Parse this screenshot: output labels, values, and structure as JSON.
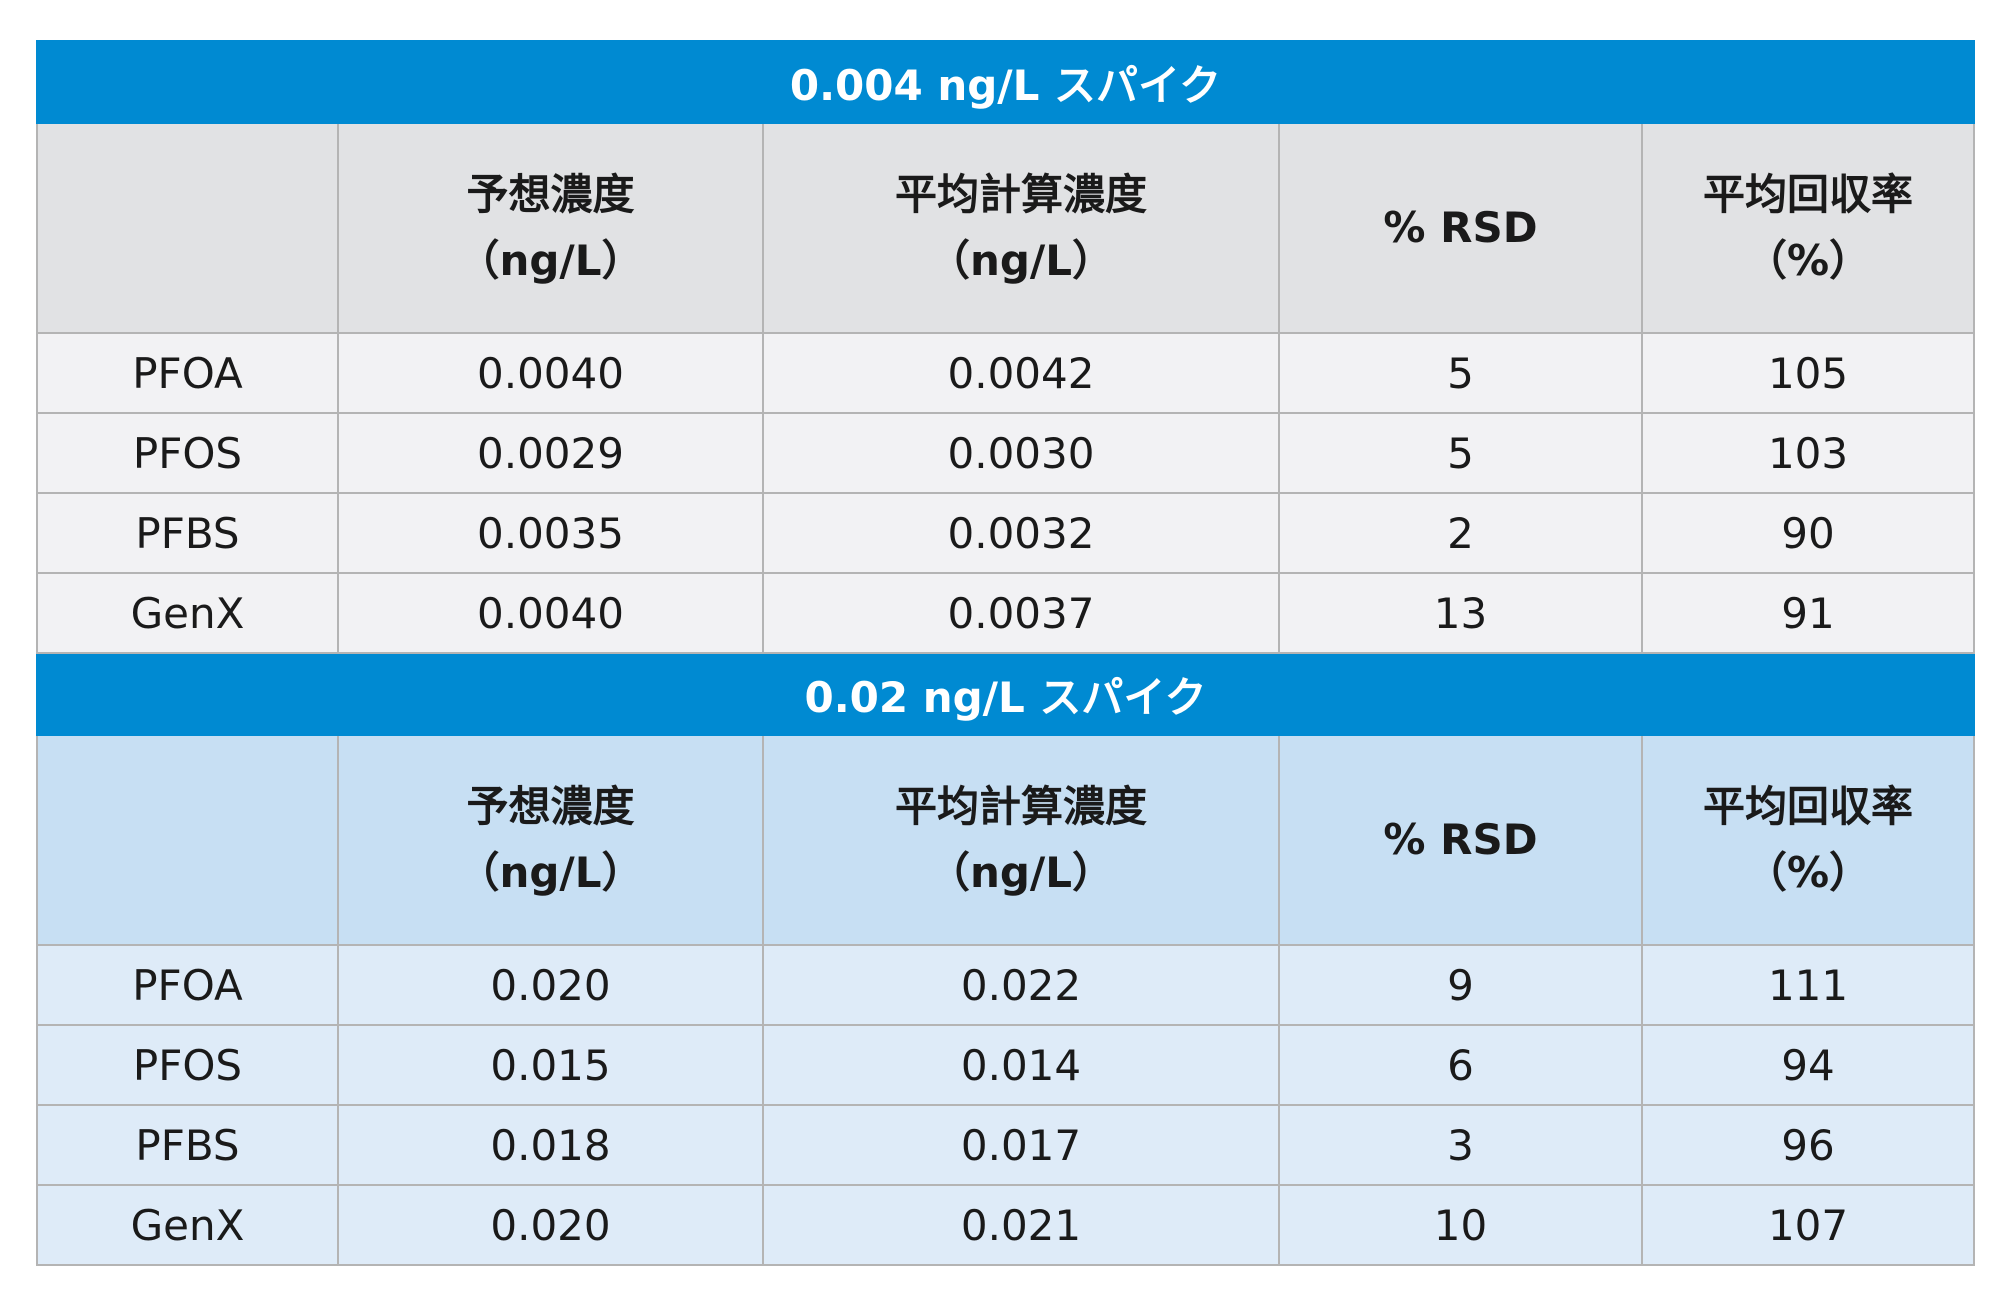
{
  "colors": {
    "section_bg": "#008ad2",
    "section_text": "#ffffff",
    "border": "#b4b4b4",
    "text": "#1a1a1a"
  },
  "columns": [
    {
      "line1": "",
      "line2": ""
    },
    {
      "line1": "予想濃度",
      "line2": "（ng/L）"
    },
    {
      "line1": "平均計算濃度",
      "line2": "（ng/L）"
    },
    {
      "line1": "% RSD",
      "line2": ""
    },
    {
      "line1": "平均回収率",
      "line2": "（%）"
    }
  ],
  "sections": [
    {
      "title": "0.004 ng/L スパイク",
      "header_bg": "#e1e2e4",
      "row_bg": "#f2f2f4",
      "rows": [
        {
          "analyte": "PFOA",
          "expected": "0.0040",
          "mean_calc": "0.0042",
          "rsd": "5",
          "recovery": "105"
        },
        {
          "analyte": "PFOS",
          "expected": "0.0029",
          "mean_calc": "0.0030",
          "rsd": "5",
          "recovery": "103"
        },
        {
          "analyte": "PFBS",
          "expected": "0.0035",
          "mean_calc": "0.0032",
          "rsd": "2",
          "recovery": "90"
        },
        {
          "analyte": "GenX",
          "expected": "0.0040",
          "mean_calc": "0.0037",
          "rsd": "13",
          "recovery": "91"
        }
      ]
    },
    {
      "title": "0.02 ng/L スパイク",
      "header_bg": "#c7dff3",
      "row_bg": "#deebf8",
      "rows": [
        {
          "analyte": "PFOA",
          "expected": "0.020",
          "mean_calc": "0.022",
          "rsd": "9",
          "recovery": "111"
        },
        {
          "analyte": "PFOS",
          "expected": "0.015",
          "mean_calc": "0.014",
          "rsd": "6",
          "recovery": "94"
        },
        {
          "analyte": "PFBS",
          "expected": "0.018",
          "mean_calc": "0.017",
          "rsd": "3",
          "recovery": "96"
        },
        {
          "analyte": "GenX",
          "expected": "0.020",
          "mean_calc": "0.021",
          "rsd": "10",
          "recovery": "107"
        }
      ]
    }
  ]
}
